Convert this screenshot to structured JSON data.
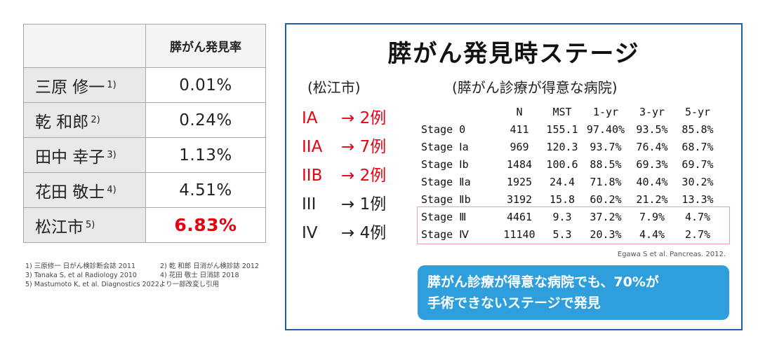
{
  "left_table": {
    "header": "膵がん発見率",
    "rows": [
      {
        "name": "三原 修一",
        "ref": "1)",
        "value": "0.01%"
      },
      {
        "name": "乾 和郎",
        "ref": "2)",
        "value": "0.24%"
      },
      {
        "name": "田中 幸子",
        "ref": "3)",
        "value": "1.13%"
      },
      {
        "name": "花田 敬士",
        "ref": "4)",
        "value": "4.51%"
      },
      {
        "name": "松江市",
        "ref": "5)",
        "value": "6.83%"
      }
    ],
    "highlight_color": "#e60012"
  },
  "references": {
    "r1": "1) 三原修一 日がん検診断会誌 2011",
    "r2": "2) 乾 和郎 日消がん検診誌 2012",
    "r3": "3) Tanaka S, et al  Radiology 2010",
    "r4": "4) 花田 敬士 日消誌 2018",
    "r5": "5) Mastumoto K, et al. Diagnostics 2022より一部改変し引用"
  },
  "panel": {
    "title": "膵がん発見時ステージ",
    "left_subtitle": "(松江市)",
    "right_subtitle": "(膵がん診療が得意な病院)",
    "cases": [
      {
        "stage": "IA",
        "text": "→ 2例",
        "red": true
      },
      {
        "stage": "IIA",
        "text": "→ 7例",
        "red": true
      },
      {
        "stage": "IIB",
        "text": "→ 2例",
        "red": true
      },
      {
        "stage": "III",
        "text": "→ 1例",
        "red": false
      },
      {
        "stage": "IV",
        "text": "→ 4例",
        "red": false
      }
    ],
    "stats_headers": [
      "",
      "N",
      "MST",
      "1-yr",
      "3-yr",
      "5-yr"
    ],
    "stats_rows": [
      [
        "Stage 0",
        "411",
        "155.1",
        "97.40%",
        "93.5%",
        "85.8%"
      ],
      [
        "Stage Ⅰa",
        "969",
        "120.3",
        "93.7%",
        "76.4%",
        "68.7%"
      ],
      [
        "Stage Ⅰb",
        "1484",
        "100.6",
        "88.5%",
        "69.3%",
        "69.7%"
      ],
      [
        "Stage Ⅱa",
        "1925",
        "24.4",
        "71.8%",
        "40.4%",
        "30.2%"
      ],
      [
        "Stage Ⅱb",
        "3192",
        "15.8",
        "60.2%",
        "21.2%",
        "13.3%"
      ],
      [
        "Stage Ⅲ",
        "4461",
        "9.3",
        "37.2%",
        "7.9%",
        "4.7%"
      ],
      [
        "Stage Ⅳ",
        "11140",
        "5.3",
        "20.3%",
        "4.4%",
        "2.7%"
      ]
    ],
    "citation": "Egawa S et al. Pancreas. 2012.",
    "callout_line1": "膵がん診療が得意な病院でも、70%が",
    "callout_line2": "手術できないステージで発見",
    "border_color": "#1f5fa8",
    "callout_color": "#2e9fdc"
  }
}
